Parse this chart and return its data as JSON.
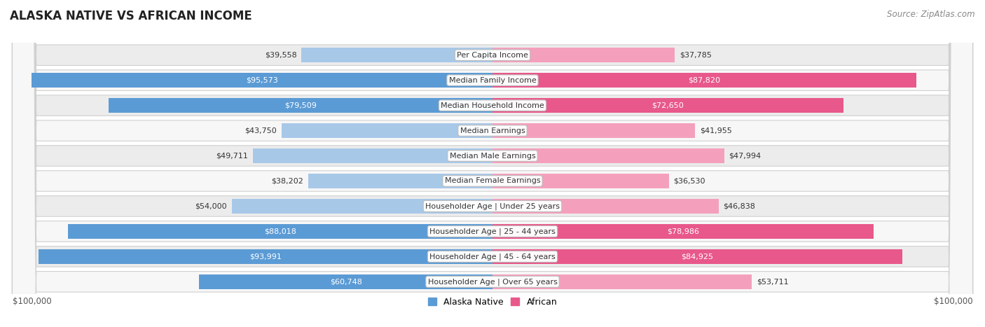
{
  "title": "ALASKA NATIVE VS AFRICAN INCOME",
  "source": "Source: ZipAtlas.com",
  "categories": [
    "Per Capita Income",
    "Median Family Income",
    "Median Household Income",
    "Median Earnings",
    "Median Male Earnings",
    "Median Female Earnings",
    "Householder Age | Under 25 years",
    "Householder Age | 25 - 44 years",
    "Householder Age | 45 - 64 years",
    "Householder Age | Over 65 years"
  ],
  "alaska_native_values": [
    39558,
    95573,
    79509,
    43750,
    49711,
    38202,
    54000,
    88018,
    93991,
    60748
  ],
  "african_values": [
    37785,
    87820,
    72650,
    41955,
    47994,
    36530,
    46838,
    78986,
    84925,
    53711
  ],
  "alaska_native_labels": [
    "$39,558",
    "$95,573",
    "$79,509",
    "$43,750",
    "$49,711",
    "$38,202",
    "$54,000",
    "$88,018",
    "$93,991",
    "$60,748"
  ],
  "african_labels": [
    "$37,785",
    "$87,820",
    "$72,650",
    "$41,955",
    "$47,994",
    "$36,530",
    "$46,838",
    "$78,986",
    "$84,925",
    "$53,711"
  ],
  "alaska_color_light": "#a8c8e8",
  "alaska_color_dark": "#5b9bd5",
  "african_color_light": "#f4a0bc",
  "african_color_dark": "#e8588a",
  "max_value": 100000,
  "legend_alaska": "Alaska Native",
  "legend_african": "African",
  "dark_threshold": 60000
}
